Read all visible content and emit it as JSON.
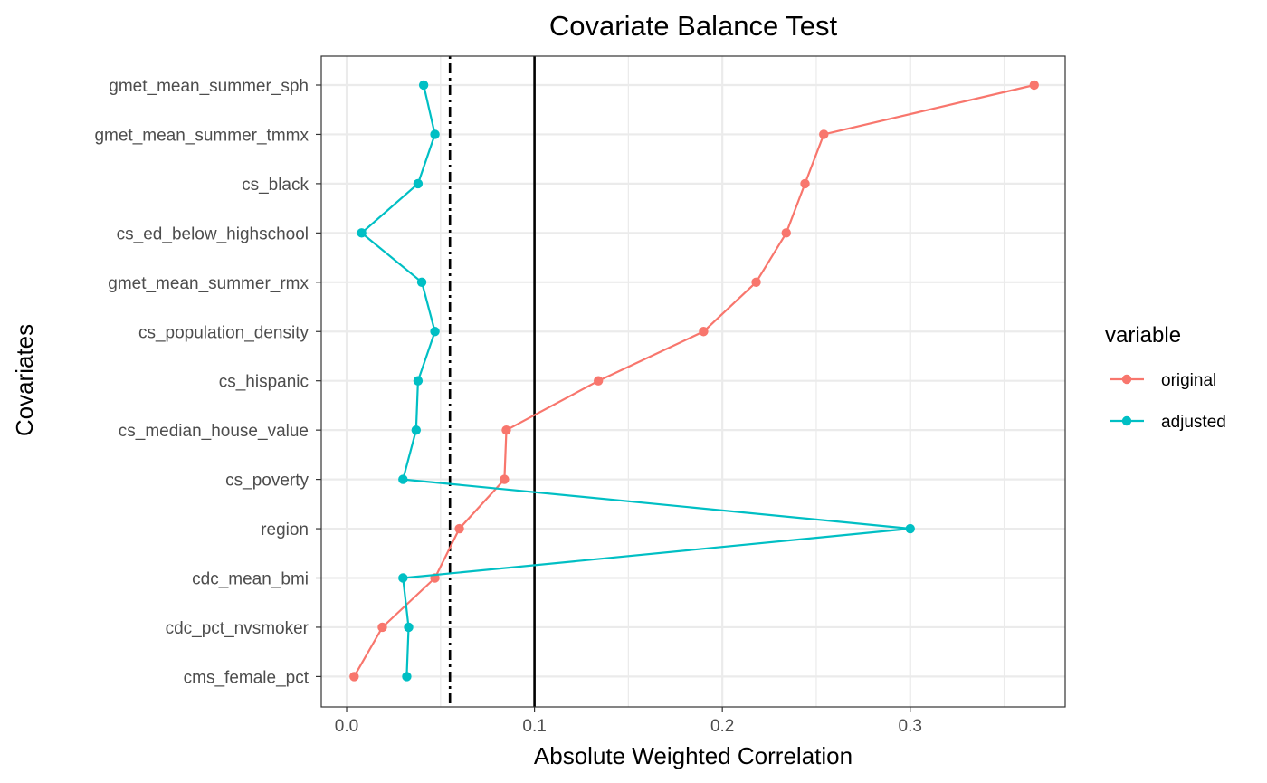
{
  "chart_data": {
    "type": "line",
    "title": "Covariate Balance Test",
    "xlabel": "Absolute Weighted Correlation",
    "ylabel": "Covariates",
    "xlim": [
      -0.0135,
      0.3825
    ],
    "x_ticks": [
      0.0,
      0.1,
      0.2,
      0.3
    ],
    "x_tick_labels": [
      "0.0",
      "0.1",
      "0.2",
      "0.3"
    ],
    "grid": true,
    "categories": [
      "cms_female_pct",
      "cdc_pct_nvsmoker",
      "cdc_mean_bmi",
      "region",
      "cs_poverty",
      "cs_median_house_value",
      "cs_hispanic",
      "cs_population_density",
      "gmet_mean_summer_rmx",
      "cs_ed_below_highschool",
      "cs_black",
      "gmet_mean_summer_tmmx",
      "gmet_mean_summer_sph"
    ],
    "series": [
      {
        "name": "original",
        "color": "#F8766D",
        "values": [
          0.004,
          0.019,
          0.047,
          0.06,
          0.084,
          0.085,
          0.134,
          0.19,
          0.218,
          0.234,
          0.244,
          0.254,
          0.366
        ]
      },
      {
        "name": "adjusted",
        "color": "#00BFC4",
        "values": [
          0.032,
          0.033,
          0.03,
          0.3,
          0.03,
          0.037,
          0.038,
          0.047,
          0.04,
          0.008,
          0.038,
          0.047,
          0.041
        ]
      }
    ],
    "reference_lines": [
      {
        "value": 0.1,
        "style": "solid"
      },
      {
        "value": 0.055,
        "style": "dotdash"
      }
    ],
    "legend": {
      "title": "variable",
      "position": "right"
    }
  }
}
